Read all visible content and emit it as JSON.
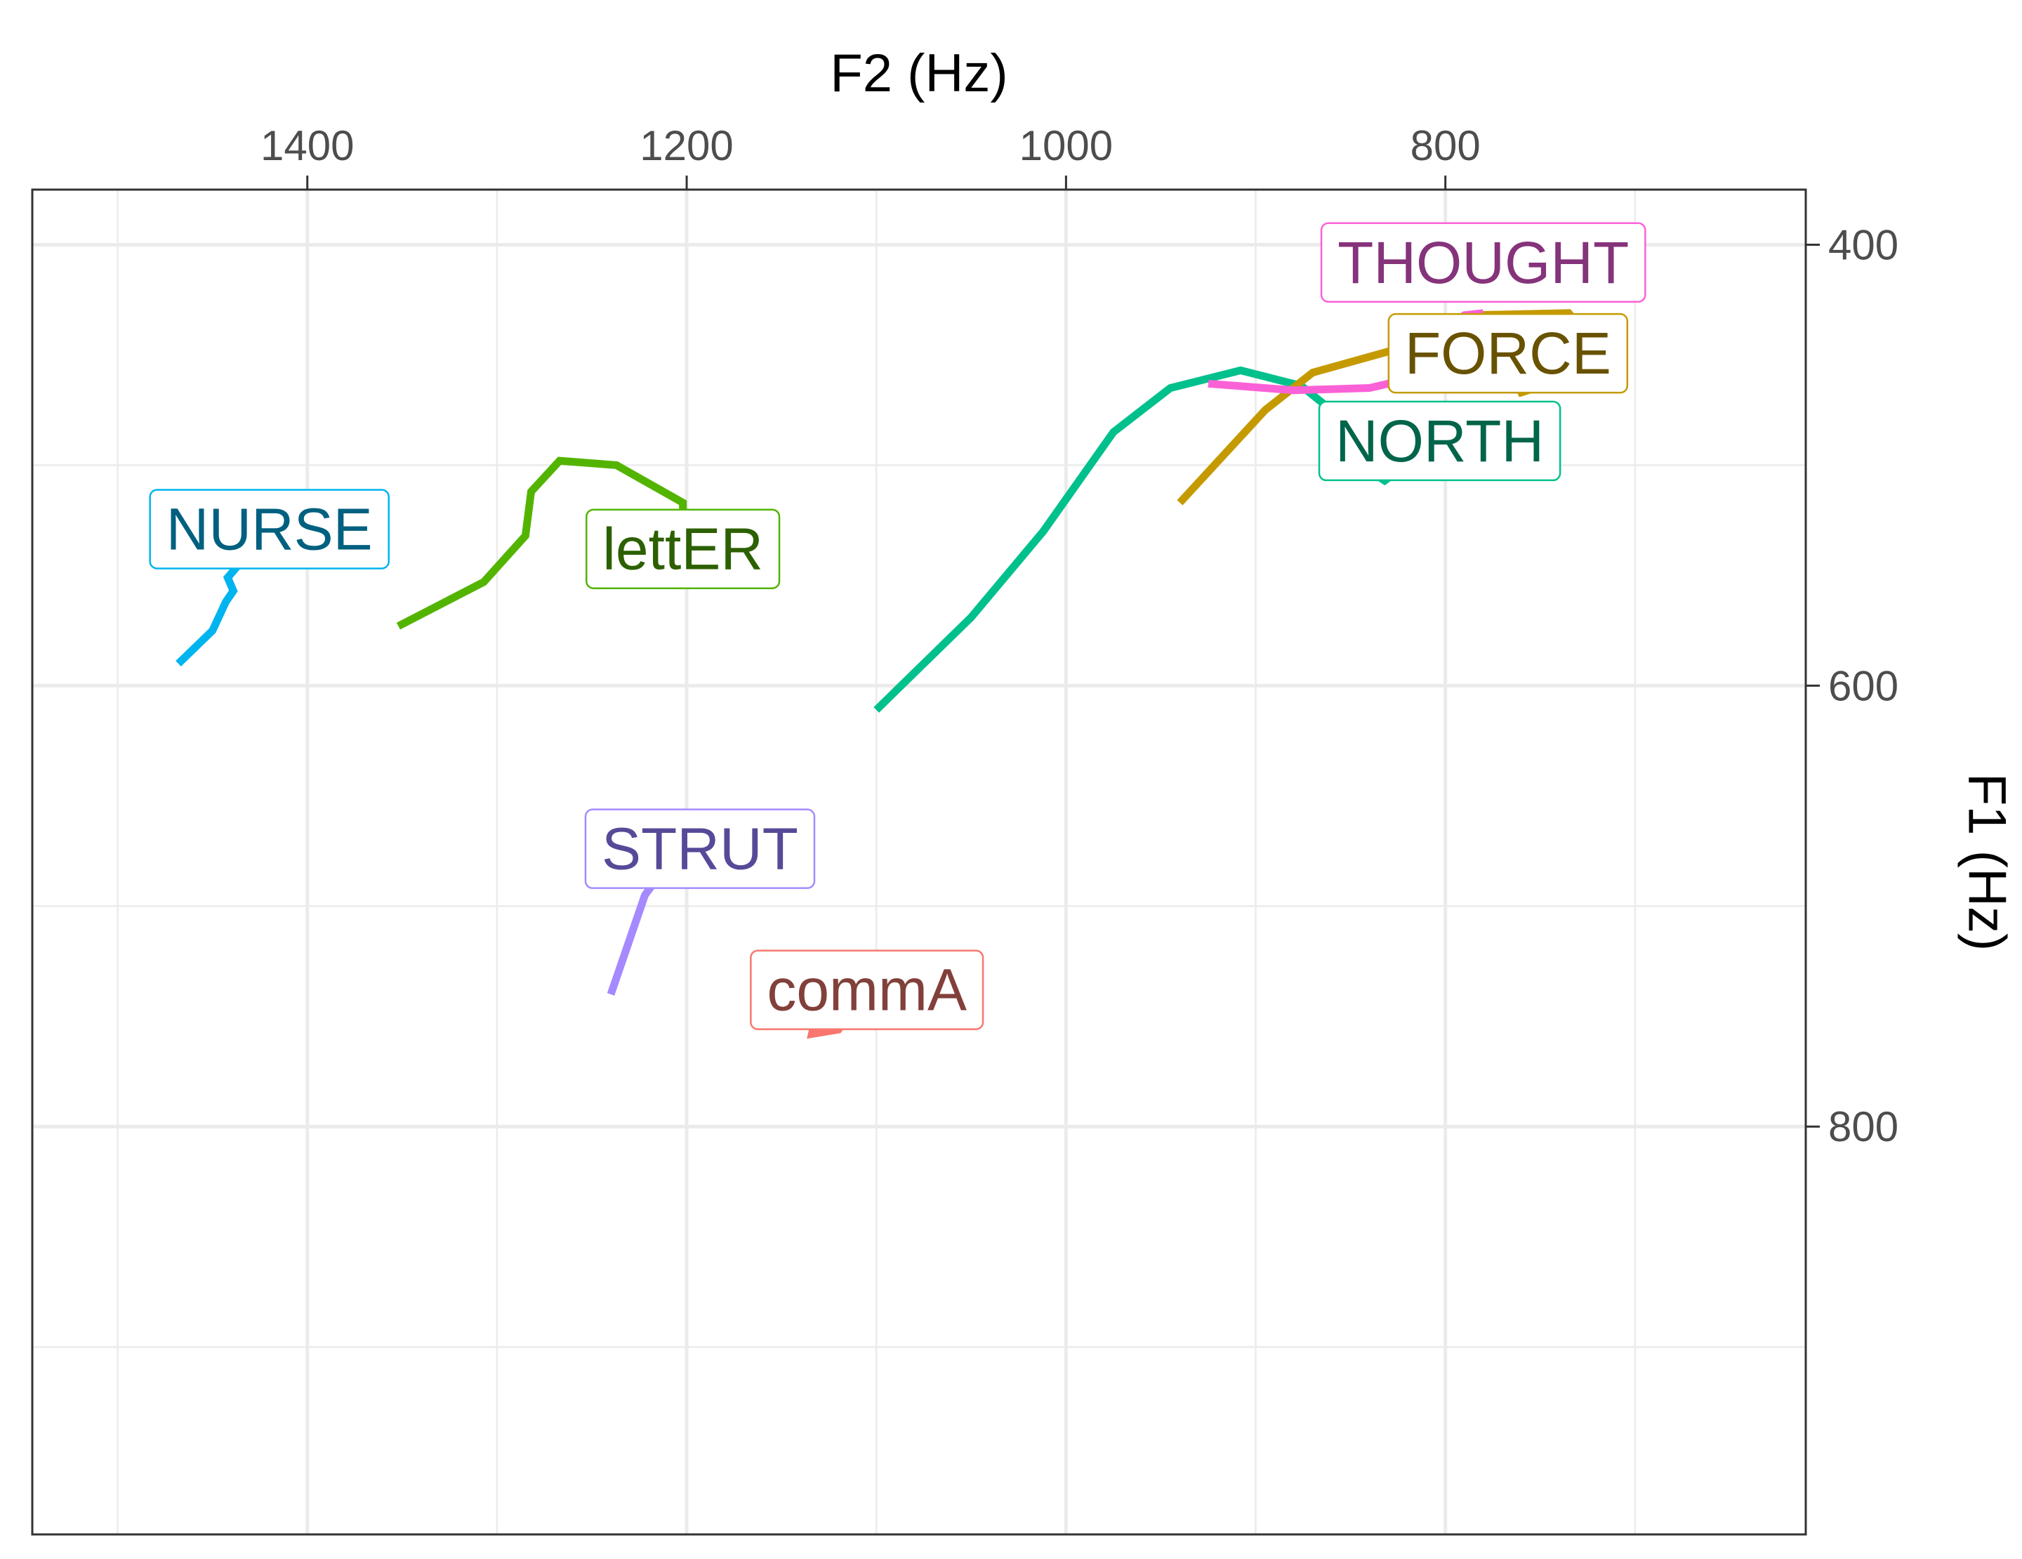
{
  "chart_data": {
    "type": "line",
    "xlabel": "F2 (Hz)",
    "ylabel": "F1 (Hz)",
    "x_reversed": true,
    "y_reversed": true,
    "x_axis_position": "top",
    "y_axis_position": "right",
    "xlim": [
      1545,
      610
    ],
    "ylim": [
      375,
      985
    ],
    "x_ticks": [
      1400,
      1200,
      1000,
      800
    ],
    "y_ticks": [
      400,
      600,
      800
    ],
    "x_minor_gridlines": [
      1500,
      1300,
      1100,
      900,
      700
    ],
    "y_minor_gridlines": [
      500,
      700,
      900
    ],
    "grid": true,
    "legend": "none",
    "series": [
      {
        "name": "NURSE",
        "line_color": "#00B4EF",
        "text_color": "#00607F",
        "points": [
          [
            1468,
            590
          ],
          [
            1450,
            575
          ],
          [
            1443,
            562
          ],
          [
            1439,
            557
          ],
          [
            1442,
            551
          ],
          [
            1436,
            545
          ],
          [
            1426,
            540
          ],
          [
            1420,
            529
          ]
        ]
      },
      {
        "name": "lettER",
        "line_color": "#53B400",
        "text_color": "#2C6000",
        "points": [
          [
            1352,
            573
          ],
          [
            1307,
            553
          ],
          [
            1285,
            532
          ],
          [
            1282,
            512
          ],
          [
            1267,
            498
          ],
          [
            1237,
            500
          ],
          [
            1202,
            517
          ],
          [
            1202,
            538
          ]
        ]
      },
      {
        "name": "NORTH",
        "line_color": "#00C08C",
        "text_color": "#00654A",
        "points": [
          [
            1100,
            611
          ],
          [
            1050,
            569
          ],
          [
            1012,
            530
          ],
          [
            975,
            485
          ],
          [
            945,
            465
          ],
          [
            908,
            457
          ],
          [
            876,
            464
          ],
          [
            863,
            473
          ],
          [
            855,
            494
          ],
          [
            832,
            507
          ],
          [
            803,
            489
          ]
        ]
      },
      {
        "name": "FORCE",
        "line_color": "#C49A00",
        "text_color": "#685200",
        "points": [
          [
            940,
            517
          ],
          [
            895,
            475
          ],
          [
            870,
            458
          ],
          [
            820,
            446
          ],
          [
            787,
            432
          ],
          [
            735,
            431
          ],
          [
            721,
            446
          ],
          [
            738,
            461
          ],
          [
            760,
            467
          ],
          [
            767,
            455
          ]
        ]
      },
      {
        "name": "THOUGHT",
        "line_color": "#FB61D7",
        "text_color": "#85337A",
        "points": [
          [
            925,
            463
          ],
          [
            880,
            466
          ],
          [
            840,
            465
          ],
          [
            815,
            460
          ],
          [
            805,
            444
          ],
          [
            790,
            432
          ],
          [
            780,
            431
          ]
        ]
      },
      {
        "name": "STRUT",
        "line_color": "#A58AFF",
        "text_color": "#574998",
        "points": [
          [
            1240,
            740
          ],
          [
            1232,
            720
          ],
          [
            1222,
            695
          ],
          [
            1210,
            681
          ],
          [
            1193,
            674
          ]
        ]
      },
      {
        "name": "commA",
        "line_color": "#F8766D",
        "text_color": "#82403A",
        "points": [
          [
            1128,
            736
          ],
          [
            1134,
            758
          ],
          [
            1120,
            756
          ],
          [
            1105,
            738
          ]
        ]
      }
    ]
  }
}
